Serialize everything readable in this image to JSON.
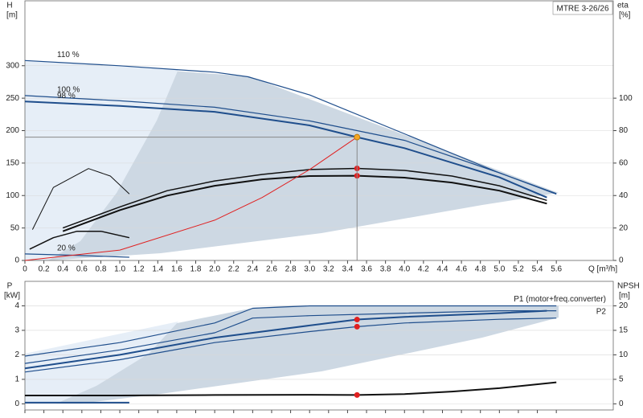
{
  "chart_data": [
    {
      "type": "line",
      "ylabel": "H",
      "yunit": "[m]",
      "y2label": "eta",
      "y2unit": "[%]",
      "xlabel": "Q [m³/h]",
      "model": "MTRE 3-26/26",
      "xlim": [
        0,
        6.2
      ],
      "ylim": [
        0,
        400
      ],
      "y2lim": [
        0,
        160
      ],
      "grid": true,
      "xticks": [
        0,
        0.2,
        0.4,
        0.6,
        0.8,
        {
          "value": 1,
          "label": "1.0"
        },
        1.2,
        1.4,
        1.6,
        1.8,
        {
          "value": 2,
          "label": "2.0"
        },
        2.2,
        2.4,
        2.6,
        2.8,
        {
          "value": 3,
          "label": "3.0"
        },
        3.2,
        3.4,
        3.6,
        3.8,
        {
          "value": 4,
          "label": "4.0"
        },
        4.2,
        4.4,
        4.6,
        4.8,
        {
          "value": 5,
          "label": "5.0"
        },
        5.2,
        5.4,
        5.6
      ],
      "yticks": [
        0,
        50,
        100,
        150,
        200,
        250,
        300
      ],
      "y2ticks": [
        0,
        20,
        40,
        60,
        80,
        100
      ],
      "series": [
        {
          "name": "110 %",
          "color": "#1f4e8c",
          "width": 1.2,
          "x": [
            0,
            1,
            2,
            2.35,
            3,
            4,
            5,
            5.6
          ],
          "values": [
            308,
            300,
            290,
            283,
            255,
            195,
            135,
            103
          ]
        },
        {
          "name": "100 %",
          "color": "#1f4e8c",
          "width": 1.2,
          "x": [
            0,
            1,
            2,
            3,
            3.5,
            4,
            5,
            5.6
          ],
          "values": [
            254,
            246,
            236,
            215,
            200,
            185,
            135,
            102
          ]
        },
        {
          "name": "98 %",
          "color": "#1f4e8c",
          "width": 2,
          "x": [
            0,
            1,
            2,
            3,
            3.5,
            4,
            5,
            5.5
          ],
          "values": [
            245,
            238,
            229,
            208,
            190,
            173,
            128,
            97
          ]
        },
        {
          "name": "20 %",
          "color": "#1f4e8c",
          "width": 1.2,
          "x": [
            0,
            0.5,
            1.1
          ],
          "values": [
            10,
            8,
            5
          ]
        },
        {
          "color": "#111111",
          "width": 2,
          "axis": "y2",
          "x": [
            0.4,
            1,
            1.5,
            2,
            2.5,
            3,
            3.5,
            4,
            4.5,
            5,
            5.5
          ],
          "values": [
            18,
            31,
            40,
            46,
            50,
            52,
            52.2,
            51,
            48,
            43,
            35
          ]
        },
        {
          "color": "#111111",
          "width": 1.5,
          "axis": "y2",
          "x": [
            0.4,
            1,
            1.5,
            2,
            2.5,
            3,
            3.5,
            4,
            4.5,
            5,
            5.5
          ],
          "values": [
            20,
            33,
            43,
            49,
            53,
            56,
            56.7,
            55.5,
            52,
            46,
            37
          ]
        },
        {
          "color": "#111111",
          "width": 1,
          "axis": "y2",
          "x": [
            0.08,
            0.3,
            0.67,
            0.9,
            1.1
          ],
          "values": [
            19,
            45,
            56.6,
            52,
            41
          ]
        },
        {
          "color": "#111111",
          "width": 1.5,
          "axis": "y2",
          "x": [
            0.05,
            0.3,
            0.55,
            0.8,
            1.1
          ],
          "values": [
            7,
            14,
            18,
            18,
            14
          ]
        },
        {
          "color": "#e02020",
          "width": 1,
          "x": [
            0,
            1,
            2,
            2.5,
            3,
            3.5
          ],
          "values": [
            0,
            16,
            62,
            97,
            140,
            190
          ]
        },
        {
          "color": "#e02020",
          "marker": true,
          "axis": "y2",
          "x": [
            3.5,
            3.5
          ],
          "values": [
            56.7,
            52.2
          ]
        },
        {
          "color": "#f5a623",
          "marker": true,
          "guides": true,
          "x": [
            3.5
          ],
          "values": [
            190
          ]
        }
      ]
    },
    {
      "type": "line",
      "ylabel": "P",
      "yunit": "[kW]",
      "y2label": "NPSH",
      "y2unit": "[m]",
      "xlim": [
        0,
        6.2
      ],
      "ylim": [
        -0.25,
        5
      ],
      "y2lim": [
        -1.25,
        25
      ],
      "grid": true,
      "xticks": [
        0,
        0.2,
        0.4,
        0.6,
        0.8,
        1,
        1.2,
        1.4,
        1.6,
        1.8,
        2,
        2.2,
        2.4,
        2.6,
        2.8,
        3,
        3.2,
        3.4,
        3.6,
        3.8,
        4,
        4.2,
        4.4,
        4.6,
        4.8,
        5,
        5.2,
        5.4,
        5.6
      ],
      "yticks": [
        0,
        1,
        2,
        3,
        4
      ],
      "y2ticks": [
        0,
        5,
        10,
        15,
        20
      ],
      "series": [
        {
          "name": "P1 (motor+freq.converter)",
          "color": "#1f4e8c",
          "width": 1.2,
          "x": [
            0,
            1,
            2,
            2.4,
            3,
            4,
            5,
            5.6
          ],
          "values": [
            1.95,
            2.5,
            3.3,
            3.9,
            4.0,
            4.0,
            4.0,
            4.0
          ]
        },
        {
          "color": "#1f4e8c",
          "width": 1.2,
          "x": [
            0,
            1,
            2,
            2.4,
            3,
            4,
            5,
            5.6
          ],
          "values": [
            1.65,
            2.2,
            2.9,
            3.5,
            3.6,
            3.7,
            3.8,
            3.8
          ]
        },
        {
          "color": "#1f4e8c",
          "width": 2,
          "x": [
            0,
            1,
            2,
            3,
            3.5,
            4,
            5,
            5.5
          ],
          "values": [
            1.45,
            2.0,
            2.7,
            3.2,
            3.44,
            3.55,
            3.7,
            3.8
          ]
        },
        {
          "name": "P2",
          "color": "#1f4e8c",
          "width": 1.2,
          "x": [
            0,
            1,
            2,
            3,
            3.5,
            4,
            5,
            5.6
          ],
          "values": [
            1.3,
            1.8,
            2.5,
            2.95,
            3.15,
            3.3,
            3.45,
            3.5
          ]
        },
        {
          "color": "#1f4e8c",
          "width": 2,
          "x": [
            0,
            1.1
          ],
          "values": [
            0.05,
            0.05
          ]
        },
        {
          "color": "#111111",
          "width": 2,
          "axis": "y2",
          "x": [
            0,
            1,
            2,
            3,
            3.5,
            4,
            4.5,
            5,
            5.6
          ],
          "values": [
            1.7,
            1.7,
            1.8,
            1.85,
            1.8,
            2.0,
            2.5,
            3.2,
            4.4
          ]
        },
        {
          "color": "#e02020",
          "marker": true,
          "x": [
            3.5,
            3.5
          ],
          "values": [
            3.44,
            3.15
          ]
        },
        {
          "color": "#e02020",
          "marker": true,
          "axis": "y2",
          "x": [
            3.5
          ],
          "values": [
            1.8
          ]
        }
      ]
    }
  ]
}
